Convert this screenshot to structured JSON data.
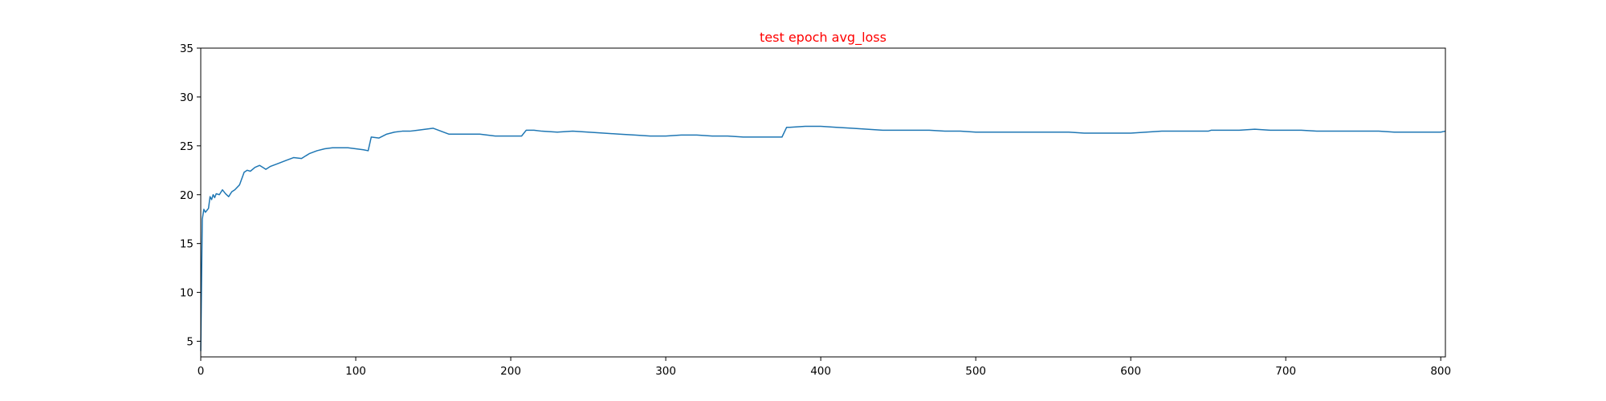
{
  "colors": {
    "title": "#ff0000",
    "line": "#1f77b4",
    "axes": "#000000",
    "background": "#ffffff"
  },
  "chart_data": {
    "type": "line",
    "title": "test epoch avg_loss",
    "xlabel": "",
    "ylabel": "",
    "xlim": [
      0,
      803
    ],
    "ylim": [
      3.4,
      35
    ],
    "x_ticks": [
      0,
      100,
      200,
      300,
      400,
      500,
      600,
      700,
      800
    ],
    "y_ticks": [
      5,
      10,
      15,
      20,
      25,
      30,
      35
    ],
    "grid": false,
    "legend": "none",
    "series": [
      {
        "x": [
          0,
          1,
          2,
          3,
          4,
          5,
          6,
          7,
          8,
          9,
          10,
          12,
          14,
          16,
          18,
          20,
          22,
          25,
          28,
          30,
          32,
          35,
          38,
          40,
          42,
          45,
          50,
          55,
          60,
          65,
          70,
          75,
          80,
          85,
          90,
          95,
          100,
          105,
          108,
          110,
          115,
          120,
          125,
          130,
          135,
          140,
          145,
          150,
          155,
          160,
          170,
          180,
          190,
          200,
          207,
          210,
          215,
          220,
          230,
          240,
          250,
          260,
          270,
          280,
          290,
          300,
          310,
          320,
          330,
          340,
          350,
          360,
          370,
          375,
          378,
          380,
          390,
          400,
          410,
          420,
          430,
          440,
          450,
          460,
          470,
          480,
          490,
          500,
          510,
          520,
          530,
          540,
          550,
          560,
          570,
          580,
          590,
          600,
          610,
          620,
          630,
          640,
          650,
          652,
          660,
          670,
          680,
          690,
          700,
          710,
          720,
          730,
          740,
          750,
          760,
          770,
          780,
          790,
          795,
          800,
          803
        ],
        "y": [
          4.0,
          17.5,
          18.5,
          18.2,
          18.4,
          18.6,
          19.8,
          19.5,
          20.0,
          19.7,
          20.1,
          20.0,
          20.5,
          20.1,
          19.8,
          20.3,
          20.5,
          21.0,
          22.3,
          22.5,
          22.4,
          22.8,
          23.0,
          22.8,
          22.6,
          22.9,
          23.2,
          23.5,
          23.8,
          23.7,
          24.2,
          24.5,
          24.7,
          24.8,
          24.8,
          24.8,
          24.7,
          24.6,
          24.5,
          25.9,
          25.8,
          26.2,
          26.4,
          26.5,
          26.5,
          26.6,
          26.7,
          26.8,
          26.5,
          26.2,
          26.2,
          26.2,
          26.0,
          26.0,
          26.0,
          26.6,
          26.6,
          26.5,
          26.4,
          26.5,
          26.4,
          26.3,
          26.2,
          26.1,
          26.0,
          26.0,
          26.1,
          26.1,
          26.0,
          26.0,
          25.9,
          25.9,
          25.9,
          25.9,
          26.9,
          26.9,
          27.0,
          27.0,
          26.9,
          26.8,
          26.7,
          26.6,
          26.6,
          26.6,
          26.6,
          26.5,
          26.5,
          26.4,
          26.4,
          26.4,
          26.4,
          26.4,
          26.4,
          26.4,
          26.3,
          26.3,
          26.3,
          26.3,
          26.4,
          26.5,
          26.5,
          26.5,
          26.5,
          26.6,
          26.6,
          26.6,
          26.7,
          26.6,
          26.6,
          26.6,
          26.5,
          26.5,
          26.5,
          26.5,
          26.5,
          26.4,
          26.4,
          26.4,
          26.4,
          26.4,
          26.5
        ]
      }
    ]
  }
}
